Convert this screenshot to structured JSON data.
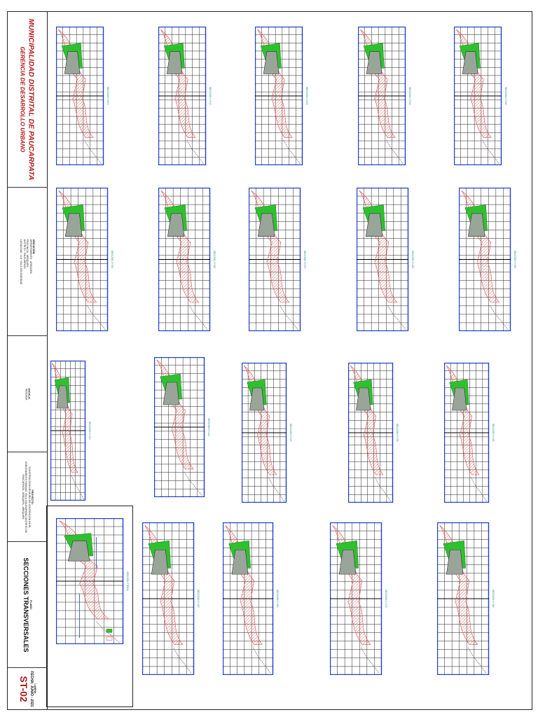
{
  "colors": {
    "frame": "#1f3fd0",
    "grid": "#202020",
    "cut_hatch": "#e05050",
    "fill_green": "#2fc02f",
    "muro_gray": "#9aa59a",
    "title_red": "#b01818",
    "ground_line": "#7a6060"
  },
  "title_block": {
    "institution": "MUNICIPALIDAD DISTRITAL DE PAUCARPATA",
    "department": "GERENCIA DE DESARROLLO URBANO",
    "location_label": "UBICACIÓN:",
    "location_lines": [
      "DEPARTAMENTO : AREQUIPA",
      "PROVINCIA : AREQUIPA",
      "DISTRITO : PAUCARPATA",
      "LOCALIDAD : A.H. VILLA SOLIDARIDAD"
    ],
    "scale_label": "ESCALA:",
    "scale_value": "INDICADA",
    "project_label": "PROYECTO:",
    "project_lines": [
      "\"CONSTRUCCION DE MURO DE CONTENCION EN EL",
      "ASENTAMIENTO HUMANO VILLA SOLIDARIDAD DISTRITO DE",
      "PAUCARPATA - AREQUIPA - AREQUIPA\""
    ],
    "plan_label": "PLANO:",
    "plan_title": "SECCIONES TRANSVERSALES",
    "sheet_label": "LAMINA:",
    "sheet_code": "ST-02",
    "date_label": "FECHA:",
    "date_value": "JUNIO - 2021"
  },
  "sections": [
    {
      "title": "SECCION 0+000"
    },
    {
      "title": "SECCION 0+010"
    },
    {
      "title": "SECCION 0+020"
    },
    {
      "title": "SECCION 0+030"
    },
    {
      "title": "SECCION 0+040"
    },
    {
      "title": "SECCION 0+050"
    },
    {
      "title": "SECCION 0+060"
    },
    {
      "title": "SECCION 0+070"
    },
    {
      "title": "SECCION 0+080"
    },
    {
      "title": "SECCION 0+090"
    },
    {
      "title": "SECCION 0+100"
    },
    {
      "title": "SECCION 0+110"
    },
    {
      "title": "SECCION 0+120"
    },
    {
      "title": "SECCION 0+130"
    },
    {
      "title": "SECCION 0+140"
    },
    {
      "title": "SECCION 0+150"
    },
    {
      "title": "SECCION 0+160"
    },
    {
      "title": "SECCION 0+170"
    },
    {
      "title": "SECCION 0+180"
    }
  ],
  "legend": {
    "section_title": "SECCION TIPICA"
  }
}
